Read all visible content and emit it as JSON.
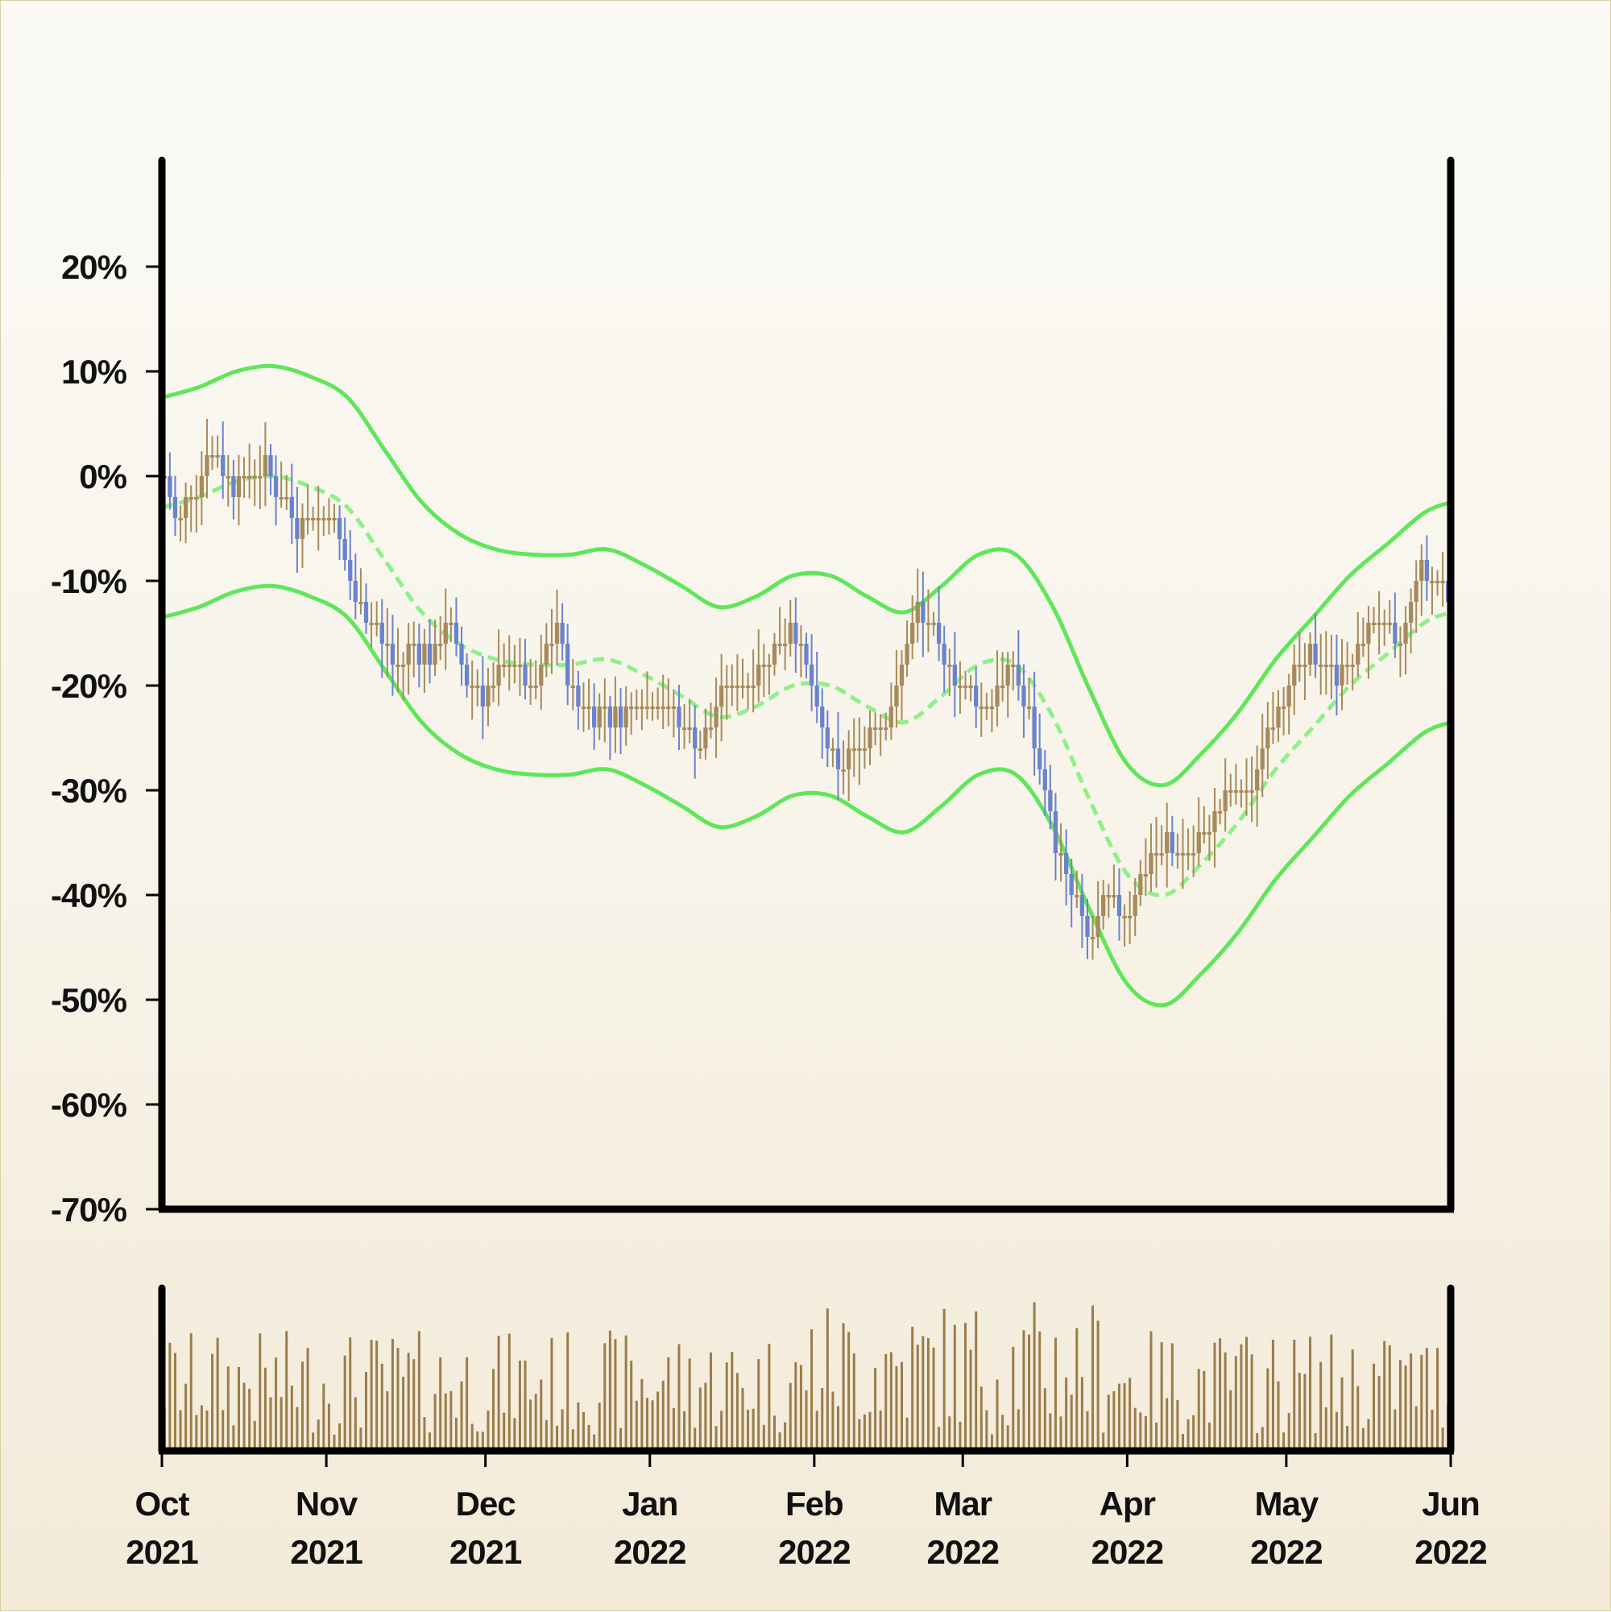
{
  "chart_data": {
    "type": "candlestick",
    "title": "",
    "xlabel": "",
    "ylabel": "",
    "y_axis": {
      "range": [
        -70,
        30
      ],
      "ticks": [
        20,
        10,
        0,
        -10,
        -20,
        -30,
        -40,
        -50,
        -60,
        -70
      ],
      "tick_labels": [
        "20%",
        "10%",
        "0%",
        "-10%",
        "-20%",
        "-30%",
        "-40%",
        "-50%",
        "-60%",
        "-70%"
      ],
      "unit": "percent change"
    },
    "x_axis": {
      "range": [
        "2021-10-01",
        "2022-06-01"
      ],
      "ticks": [
        {
          "date": "2021-10-01",
          "month": "Oct",
          "year": "2021"
        },
        {
          "date": "2021-11-01",
          "month": "Nov",
          "year": "2021"
        },
        {
          "date": "2021-12-01",
          "month": "Dec",
          "year": "2021"
        },
        {
          "date": "2022-01-01",
          "month": "Jan",
          "year": "2022"
        },
        {
          "date": "2022-02-01",
          "month": "Feb",
          "year": "2022"
        },
        {
          "date": "2022-03-01",
          "month": "Mar",
          "year": "2022"
        },
        {
          "date": "2022-04-01",
          "month": "Apr",
          "year": "2022"
        },
        {
          "date": "2022-05-01",
          "month": "May",
          "year": "2022"
        },
        {
          "date": "2022-06-01",
          "month": "Jun",
          "year": "2022"
        }
      ]
    },
    "price_path": [
      [
        "2021-10-01",
        0
      ],
      [
        "2021-10-04",
        -5
      ],
      [
        "2021-10-07",
        -1
      ],
      [
        "2021-10-11",
        3
      ],
      [
        "2021-10-14",
        -1
      ],
      [
        "2021-10-18",
        1
      ],
      [
        "2021-10-22",
        0
      ],
      [
        "2021-10-26",
        -5
      ],
      [
        "2021-10-30",
        -3
      ],
      [
        "2021-11-03",
        -5
      ],
      [
        "2021-11-06",
        -11
      ],
      [
        "2021-11-10",
        -14
      ],
      [
        "2021-11-14",
        -18
      ],
      [
        "2021-11-18",
        -16
      ],
      [
        "2021-11-21",
        -18
      ],
      [
        "2021-11-24",
        -14
      ],
      [
        "2021-11-28",
        -20
      ],
      [
        "2021-12-02",
        -21
      ],
      [
        "2021-12-06",
        -17
      ],
      [
        "2021-12-10",
        -21
      ],
      [
        "2021-12-14",
        -14
      ],
      [
        "2021-12-18",
        -21
      ],
      [
        "2021-12-22",
        -23
      ],
      [
        "2022-01-01",
        -22
      ],
      [
        "2022-01-06",
        -23
      ],
      [
        "2022-01-10",
        -26
      ],
      [
        "2022-01-16",
        -20
      ],
      [
        "2022-01-22",
        -18
      ],
      [
        "2022-01-28",
        -14
      ],
      [
        "2022-02-02",
        -24
      ],
      [
        "2022-02-06",
        -28
      ],
      [
        "2022-02-12",
        -24
      ],
      [
        "2022-02-16",
        -22
      ],
      [
        "2022-02-20",
        -12
      ],
      [
        "2022-02-26",
        -18
      ],
      [
        "2022-03-02",
        -20
      ],
      [
        "2022-03-06",
        -22
      ],
      [
        "2022-03-10",
        -18
      ],
      [
        "2022-03-14",
        -24
      ],
      [
        "2022-03-18",
        -34
      ],
      [
        "2022-03-22",
        -40
      ],
      [
        "2022-03-25",
        -45
      ],
      [
        "2022-03-28",
        -40
      ],
      [
        "2022-04-01",
        -43
      ],
      [
        "2022-04-05",
        -36
      ],
      [
        "2022-04-09",
        -35
      ],
      [
        "2022-04-12",
        -37
      ],
      [
        "2022-04-16",
        -33
      ],
      [
        "2022-04-20",
        -30
      ],
      [
        "2022-04-24",
        -31
      ],
      [
        "2022-04-28",
        -23
      ],
      [
        "2022-05-02",
        -20
      ],
      [
        "2022-05-06",
        -17
      ],
      [
        "2022-05-10",
        -19
      ],
      [
        "2022-05-14",
        -17
      ],
      [
        "2022-05-18",
        -14
      ],
      [
        "2022-05-22",
        -16
      ],
      [
        "2022-05-26",
        -9
      ],
      [
        "2022-05-30",
        -10
      ],
      [
        "2022-06-01",
        -11
      ]
    ],
    "moving_average": [
      [
        "2021-10-01",
        -3
      ],
      [
        "2021-10-08",
        -2
      ],
      [
        "2021-10-15",
        -0.5
      ],
      [
        "2021-10-22",
        0
      ],
      [
        "2021-10-29",
        -1
      ],
      [
        "2021-11-05",
        -3
      ],
      [
        "2021-11-12",
        -8
      ],
      [
        "2021-11-19",
        -13
      ],
      [
        "2021-11-26",
        -16
      ],
      [
        "2021-12-03",
        -17.5
      ],
      [
        "2021-12-10",
        -18
      ],
      [
        "2021-12-17",
        -18
      ],
      [
        "2021-12-24",
        -17.5
      ],
      [
        "2021-12-31",
        -19
      ],
      [
        "2022-01-07",
        -21
      ],
      [
        "2022-01-14",
        -23
      ],
      [
        "2022-01-21",
        -22
      ],
      [
        "2022-01-28",
        -20
      ],
      [
        "2022-02-04",
        -20
      ],
      [
        "2022-02-11",
        -22
      ],
      [
        "2022-02-18",
        -23.5
      ],
      [
        "2022-02-25",
        -21
      ],
      [
        "2022-03-04",
        -18
      ],
      [
        "2022-03-11",
        -18
      ],
      [
        "2022-03-18",
        -23
      ],
      [
        "2022-03-25",
        -31
      ],
      [
        "2022-04-01",
        -38
      ],
      [
        "2022-04-08",
        -40
      ],
      [
        "2022-04-15",
        -37
      ],
      [
        "2022-04-22",
        -33
      ],
      [
        "2022-04-29",
        -28
      ],
      [
        "2022-05-06",
        -24
      ],
      [
        "2022-05-13",
        -20
      ],
      [
        "2022-05-20",
        -17
      ],
      [
        "2022-05-27",
        -14
      ],
      [
        "2022-06-01",
        -13
      ]
    ],
    "band_halfwidth": 10.5,
    "volume_range": [
      0,
      10
    ],
    "colors": {
      "up_candle": "#a88a5a",
      "down_candle": "#6a83cc",
      "bands": "#5fe65a",
      "moving_average": "#8ef08a",
      "volume": "#9a7c49",
      "axis": "#000000"
    },
    "volume_panel": true,
    "grid": false,
    "legend": "none"
  }
}
